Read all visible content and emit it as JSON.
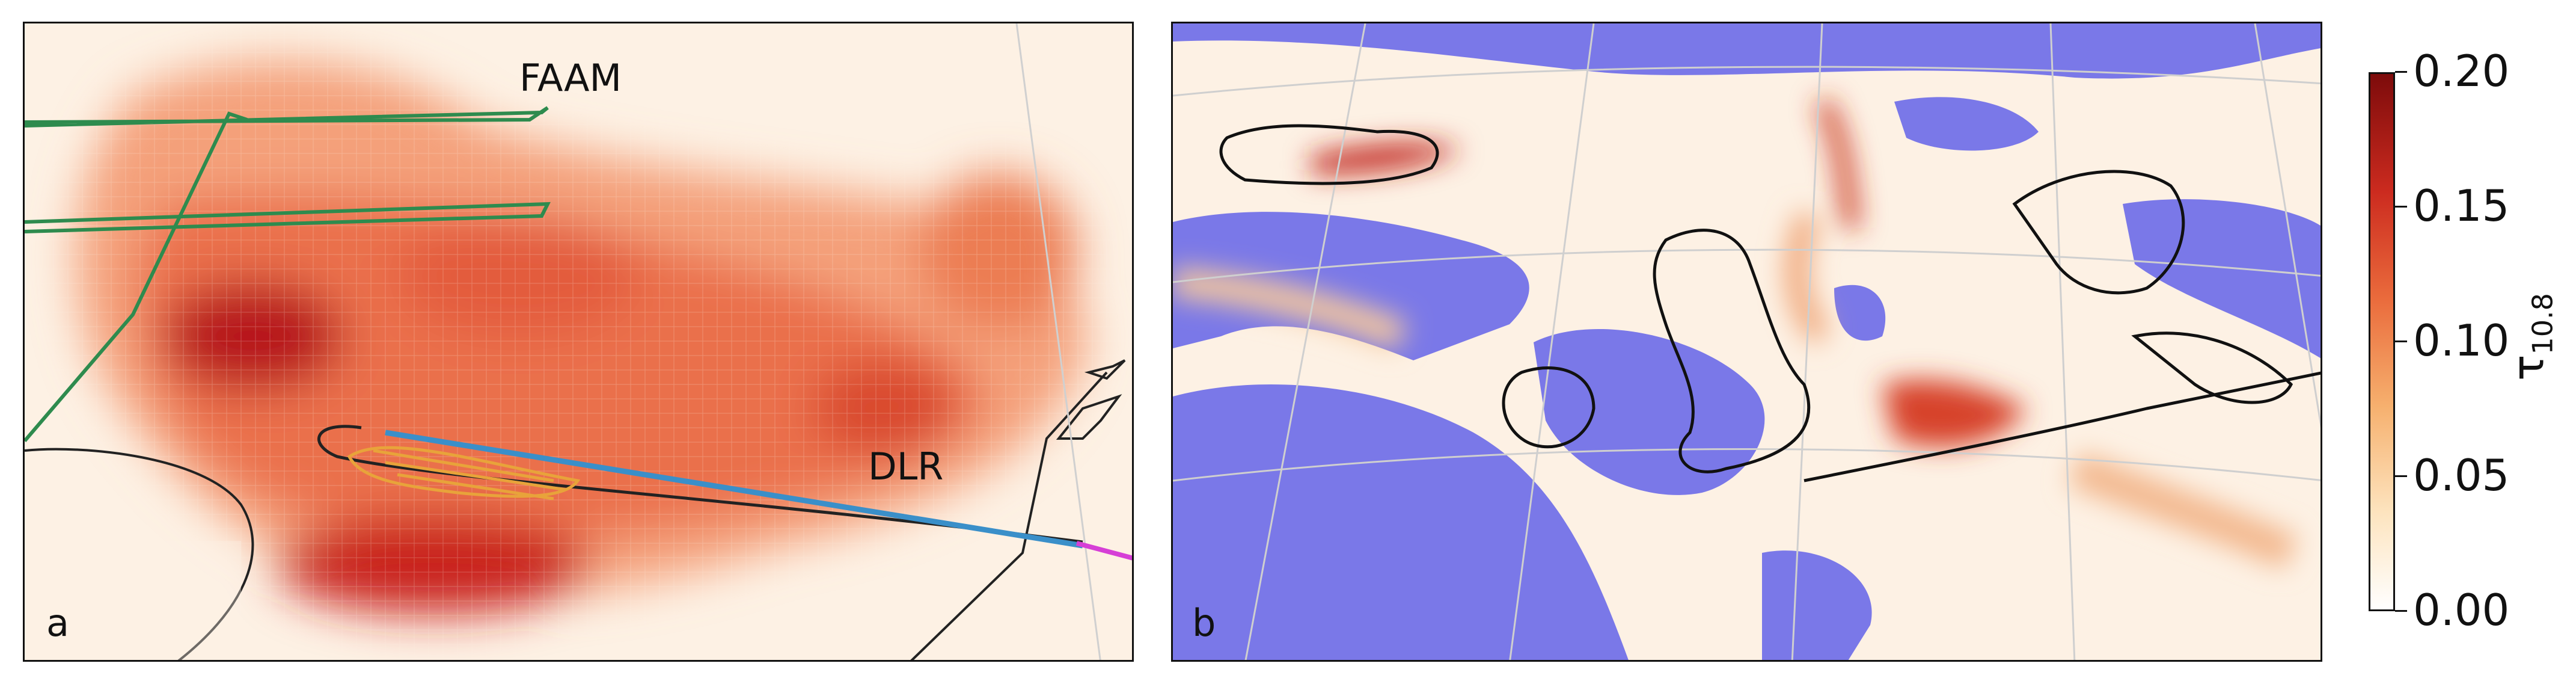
{
  "panel_a": {
    "letter": "a",
    "labels": {
      "faam": "FAAM",
      "dlr": "DLR"
    },
    "colors": {
      "faam_track": "#2e8b4e",
      "dlr_track": "#3a8fc9",
      "dlr_end": "#d63fd6",
      "contour": "#e8a33a",
      "coast": "#222222"
    }
  },
  "panel_b": {
    "letter": "b",
    "colors": {
      "cloud_mask": "#7a78e8",
      "graticule": "#cfcfcf",
      "coast": "#111111"
    }
  },
  "colorbar": {
    "title": "τ",
    "title_sub": "10.8",
    "ticks": [
      "0.00",
      "0.05",
      "0.10",
      "0.15",
      "0.20"
    ],
    "range": [
      0.0,
      0.2
    ],
    "colormap": "OrRd"
  }
}
